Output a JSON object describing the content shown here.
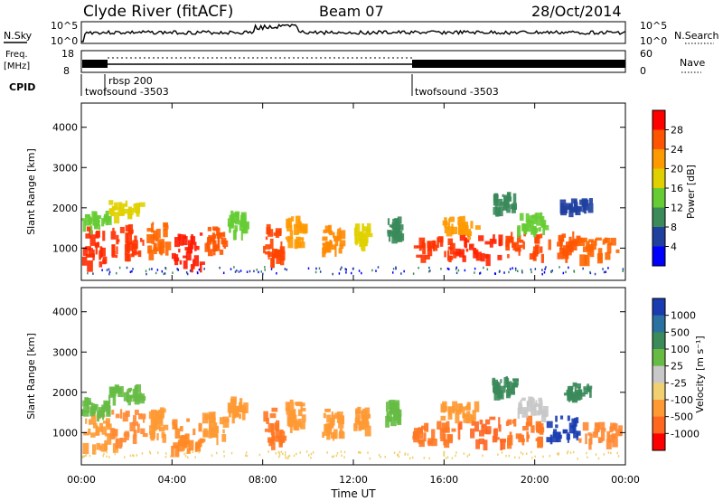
{
  "header": {
    "station": "Clyde River (fitACF)",
    "beam": "Beam 07",
    "date": "28/Oct/2014"
  },
  "strips": {
    "nsky_label": "N.Sky",
    "nsky_ticks": [
      "10^5",
      "10^0"
    ],
    "nsearch_label": "N.Search",
    "nsearch_ticks": [
      "10^5",
      "10^0"
    ],
    "freq_label_1": "Freq.",
    "freq_label_2": "[MHz]",
    "freq_ticks": [
      "18",
      "8"
    ],
    "nave_label": "Nave",
    "nave_ticks": [
      "60",
      "0"
    ],
    "cpid_label": "CPID",
    "cpid_segments": [
      {
        "text": "twofsound -3503",
        "start_hour": 0
      },
      {
        "text": "rbsp 200",
        "start_hour": 1.0
      },
      {
        "text": "twofsound -3503",
        "start_hour": 14.6
      }
    ]
  },
  "chart_data": [
    {
      "type": "heatmap",
      "name": "power",
      "ylabel": "Slant Range [km]",
      "yticks": [
        1000,
        2000,
        3000,
        4000
      ],
      "ylim": [
        200,
        4600
      ],
      "colorbar_label": "Power [dB]",
      "colorbar_ticks": [
        "28",
        "24",
        "20",
        "16",
        "12",
        "8",
        "4"
      ],
      "colors": [
        "#0000ff",
        "#2040a0",
        "#3a8a5a",
        "#66cc33",
        "#e0d000",
        "#ff9900",
        "#ff5500",
        "#ff0000"
      ]
    },
    {
      "type": "heatmap",
      "name": "velocity",
      "ylabel": "Slant Range [km]",
      "yticks": [
        1000,
        2000,
        3000,
        4000
      ],
      "ylim": [
        200,
        4600
      ],
      "colorbar_label": "Velocity [m s⁻¹]",
      "colorbar_ticks": [
        "1000",
        "500",
        "100",
        "25",
        "-25",
        "-100",
        "-500",
        "-1000"
      ],
      "colors": [
        "#1a3cb0",
        "#2a70a0",
        "#3a8a5a",
        "#66bb44",
        "#c8c8c8",
        "#f0d070",
        "#ff9933",
        "#ff6620",
        "#ff0000"
      ]
    }
  ],
  "xaxis": {
    "label": "Time UT",
    "ticks": [
      "00:00",
      "04:00",
      "08:00",
      "12:00",
      "16:00",
      "20:00",
      "00:00"
    ],
    "range_hours": [
      0,
      24
    ]
  },
  "blobs": [
    {
      "t": 0.7,
      "r": 1100,
      "w": 1.4,
      "h": 900,
      "pw": "#ff2a00",
      "vel": "#ff9933"
    },
    {
      "t": 2.0,
      "r": 1200,
      "w": 1.5,
      "h": 800,
      "pw": "#ff3300",
      "vel": "#ff8833"
    },
    {
      "t": 0.6,
      "r": 1750,
      "w": 1.2,
      "h": 400,
      "pw": "#66cc33",
      "vel": "#66bb44"
    },
    {
      "t": 1.9,
      "r": 2050,
      "w": 1.4,
      "h": 300,
      "pw": "#e0d000",
      "vel": "#66bb44"
    },
    {
      "t": 3.3,
      "r": 1300,
      "w": 0.9,
      "h": 700,
      "pw": "#ff6600",
      "vel": "#ff9933"
    },
    {
      "t": 4.6,
      "r": 1000,
      "w": 1.3,
      "h": 800,
      "pw": "#ff1a00",
      "vel": "#ff8822"
    },
    {
      "t": 5.8,
      "r": 1250,
      "w": 1.0,
      "h": 600,
      "pw": "#ff5500",
      "vel": "#ff9933"
    },
    {
      "t": 6.8,
      "r": 1700,
      "w": 0.7,
      "h": 500,
      "pw": "#66cc33",
      "vel": "#ff9933"
    },
    {
      "t": 8.4,
      "r": 1200,
      "w": 0.8,
      "h": 900,
      "pw": "#ff4400",
      "vel": "#ff7722"
    },
    {
      "t": 9.4,
      "r": 1500,
      "w": 0.8,
      "h": 700,
      "pw": "#ff9900",
      "vel": "#ff9933"
    },
    {
      "t": 11.0,
      "r": 1300,
      "w": 0.8,
      "h": 600,
      "pw": "#ff8800",
      "vel": "#ff9933"
    },
    {
      "t": 12.3,
      "r": 1400,
      "w": 0.6,
      "h": 500,
      "pw": "#e0d000",
      "vel": "#ff9933"
    },
    {
      "t": 13.7,
      "r": 1600,
      "w": 0.6,
      "h": 500,
      "pw": "#3a8a5a",
      "vel": "#66bb44"
    },
    {
      "t": 15.5,
      "r": 1050,
      "w": 1.8,
      "h": 500,
      "pw": "#ff3300",
      "vel": "#ff7722"
    },
    {
      "t": 17.5,
      "r": 1100,
      "w": 2.0,
      "h": 600,
      "pw": "#ff2200",
      "vel": "#ff6620"
    },
    {
      "t": 19.5,
      "r": 1150,
      "w": 1.6,
      "h": 600,
      "pw": "#ff4400",
      "vel": "#ff7722"
    },
    {
      "t": 21.2,
      "r": 1150,
      "w": 1.4,
      "h": 550,
      "pw": "#ff5500",
      "vel": "#1a3cb0"
    },
    {
      "t": 22.8,
      "r": 1050,
      "w": 1.8,
      "h": 450,
      "pw": "#ff6600",
      "vel": "#ff8833"
    },
    {
      "t": 16.6,
      "r": 1600,
      "w": 1.6,
      "h": 400,
      "pw": "#ff9900",
      "vel": "#ff9933"
    },
    {
      "t": 19.8,
      "r": 1700,
      "w": 1.2,
      "h": 400,
      "pw": "#66cc33",
      "vel": "#c8c8c8"
    },
    {
      "t": 18.6,
      "r": 2200,
      "w": 1.0,
      "h": 400,
      "pw": "#3a8a5a",
      "vel": "#3a8a5a"
    },
    {
      "t": 21.8,
      "r": 2100,
      "w": 1.4,
      "h": 300,
      "pw": "#2040a0",
      "vel": "#3a8a5a"
    }
  ]
}
